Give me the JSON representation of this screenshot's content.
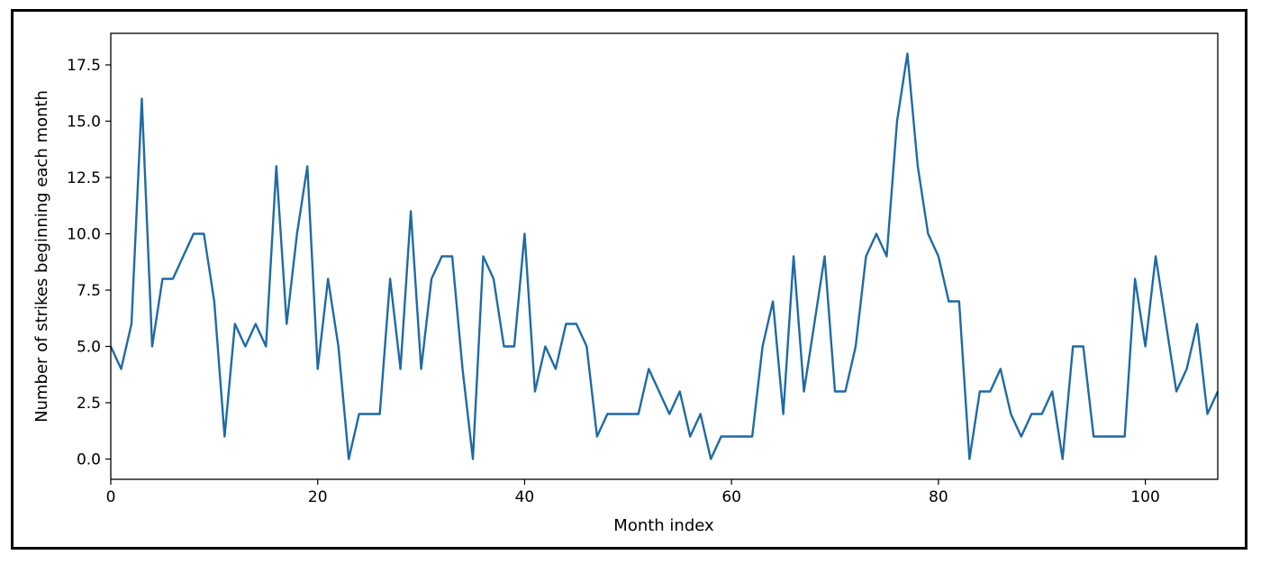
{
  "chart_data": {
    "type": "line",
    "title": "",
    "xlabel": "Month index",
    "ylabel": "Number of strikes beginning each month",
    "xlim": [
      0,
      107
    ],
    "ylim": [
      -0.9,
      18.9
    ],
    "xticks": [
      0,
      20,
      40,
      60,
      80,
      100
    ],
    "yticks": [
      0.0,
      2.5,
      5.0,
      7.5,
      10.0,
      12.5,
      15.0,
      17.5
    ],
    "xtick_labels": [
      "0",
      "20",
      "40",
      "60",
      "80",
      "100"
    ],
    "ytick_labels": [
      "0.0",
      "2.5",
      "5.0",
      "7.5",
      "10.0",
      "12.5",
      "15.0",
      "17.5"
    ],
    "grid": false,
    "legend": "none",
    "series": [
      {
        "color": "#1f6aa5",
        "x": [
          0,
          1,
          2,
          3,
          4,
          5,
          6,
          7,
          8,
          9,
          10,
          11,
          12,
          13,
          14,
          15,
          16,
          17,
          18,
          19,
          20,
          21,
          22,
          23,
          24,
          25,
          26,
          27,
          28,
          29,
          30,
          31,
          32,
          33,
          34,
          35,
          36,
          37,
          38,
          39,
          40,
          41,
          42,
          43,
          44,
          45,
          46,
          47,
          48,
          49,
          50,
          51,
          52,
          53,
          54,
          55,
          56,
          57,
          58,
          59,
          60,
          61,
          62,
          63,
          64,
          65,
          66,
          67,
          68,
          69,
          70,
          71,
          72,
          73,
          74,
          75,
          76,
          77,
          78,
          79,
          80,
          81,
          82,
          83,
          84,
          85,
          86,
          87,
          88,
          89,
          90,
          91,
          92,
          93,
          94,
          95,
          96,
          97,
          98,
          99,
          100,
          101,
          102,
          103,
          104,
          105,
          106,
          107
        ],
        "values": [
          5,
          4,
          6,
          16,
          5,
          8,
          8,
          9,
          10,
          10,
          7,
          1,
          6,
          5,
          6,
          5,
          13,
          6,
          10,
          13,
          4,
          8,
          5,
          0,
          2,
          2,
          2,
          8,
          4,
          11,
          4,
          8,
          9,
          9,
          4,
          0,
          9,
          8,
          5,
          5,
          10,
          3,
          5,
          4,
          6,
          6,
          5,
          1,
          2,
          2,
          2,
          2,
          4,
          3,
          2,
          3,
          1,
          2,
          0,
          1,
          1,
          1,
          1,
          5,
          7,
          2,
          9,
          3,
          6,
          9,
          3,
          3,
          5,
          9,
          10,
          9,
          15,
          18,
          13,
          10,
          9,
          7,
          7,
          0,
          3,
          3,
          4,
          2,
          1,
          2,
          2,
          3,
          0,
          5,
          5,
          1,
          1,
          1,
          1,
          8,
          5,
          9,
          6,
          3,
          4,
          6,
          2,
          3
        ]
      }
    ]
  }
}
